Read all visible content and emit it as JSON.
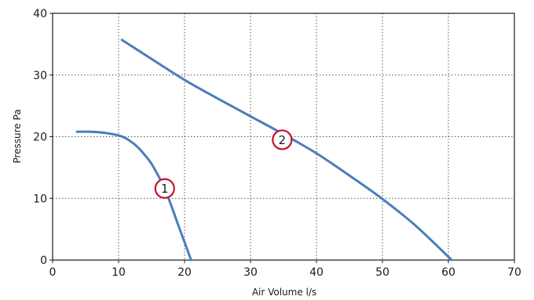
{
  "chart_data": {
    "type": "line",
    "title": "",
    "xlabel": "Air Volume l/s",
    "ylabel": "Pressure Pa",
    "xlim": [
      0,
      70
    ],
    "ylim": [
      0,
      40
    ],
    "x_ticks": [
      0,
      10,
      20,
      30,
      40,
      50,
      60,
      70
    ],
    "y_ticks": [
      0,
      10,
      20,
      30,
      40
    ],
    "grid": "dotted",
    "line_color": "#4a7ebb",
    "marker_color": "#c8102e",
    "series": [
      {
        "x": [
          3.7,
          6,
          8,
          10,
          11,
          12,
          13,
          14,
          15,
          16,
          17,
          18,
          19,
          20,
          21
        ],
        "values": [
          20.8,
          20.8,
          20.6,
          20.2,
          19.8,
          19.1,
          18.2,
          17.0,
          15.6,
          13.7,
          11.6,
          8.8,
          5.8,
          2.9,
          0
        ]
      },
      {
        "x": [
          10.5,
          15,
          20,
          25,
          30,
          35,
          40,
          45,
          50,
          55,
          60.5
        ],
        "values": [
          35.7,
          32.6,
          29.2,
          26.2,
          23.3,
          20.4,
          17.3,
          13.7,
          9.9,
          5.6,
          0
        ]
      }
    ],
    "annotations": [
      {
        "label": "1",
        "x": 17.0,
        "y": 11.6
      },
      {
        "label": "2",
        "x": 34.8,
        "y": 19.5
      }
    ]
  }
}
